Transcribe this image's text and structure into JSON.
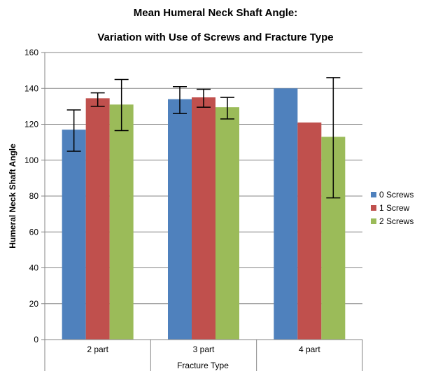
{
  "chart_data": {
    "type": "bar",
    "title": "Mean Humeral Neck Shaft Angle:",
    "subtitle": "Variation with Use of Screws and Fracture Type",
    "xlabel": "Fracture Type",
    "ylabel": "Humeral Neck Shaft Angle",
    "ylim": [
      0,
      160
    ],
    "yticks": [
      "0",
      "20",
      "40",
      "60",
      "80",
      "100",
      "120",
      "140",
      "160"
    ],
    "grid": true,
    "legend_position": "right",
    "categories": [
      "2 part",
      "3 part",
      "4 part"
    ],
    "series": [
      {
        "name": "0 Screws",
        "color": "#4f81bd",
        "values": [
          117,
          134,
          140
        ],
        "error_low": [
          105,
          126,
          null
        ],
        "error_high": [
          128,
          141,
          null
        ]
      },
      {
        "name": "1 Screw",
        "color": "#c0504d",
        "values": [
          134.5,
          135,
          121
        ],
        "error_low": [
          130,
          129.5,
          null
        ],
        "error_high": [
          137.5,
          139.5,
          null
        ]
      },
      {
        "name": "2 Screws",
        "color": "#9bbb59",
        "values": [
          131,
          129.5,
          113
        ],
        "error_low": [
          116.5,
          123,
          79
        ],
        "error_high": [
          145,
          135,
          146
        ]
      }
    ]
  }
}
